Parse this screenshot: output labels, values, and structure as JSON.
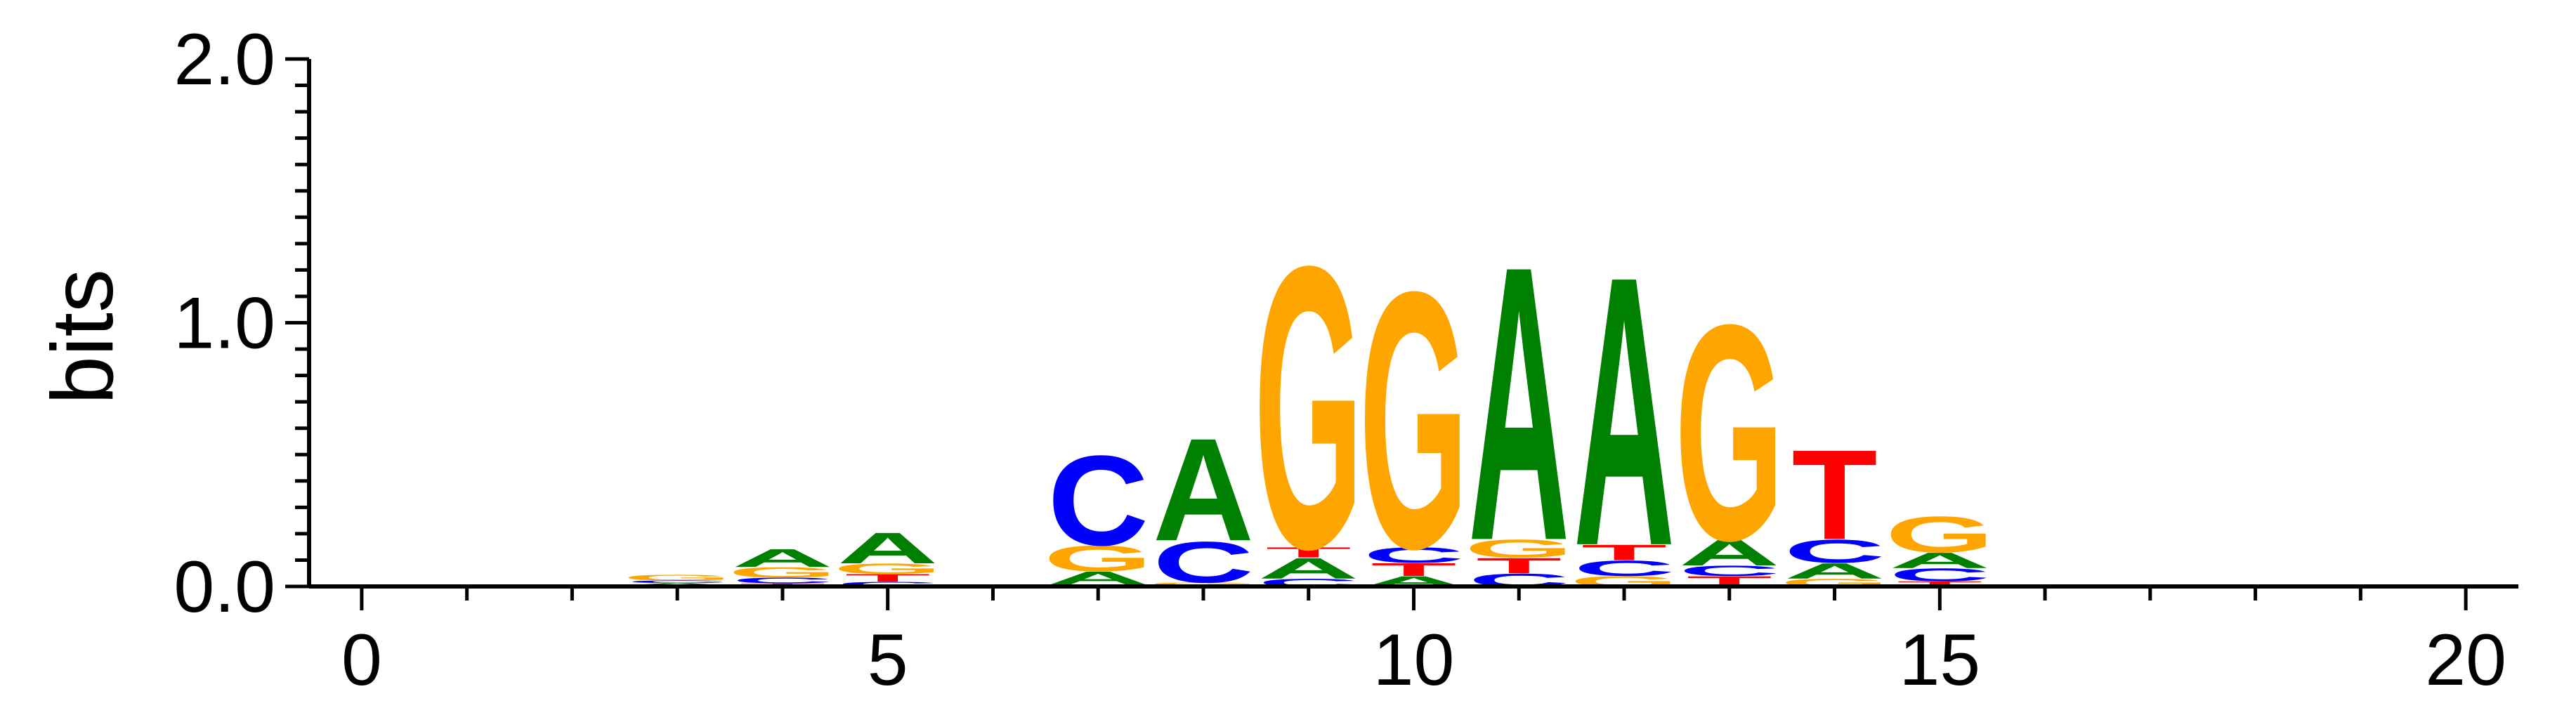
{
  "chart_data": {
    "type": "sequence-logo",
    "ylabel": "bits",
    "ylim": [
      0,
      2.0
    ],
    "xlim": [
      -0.5,
      20.5
    ],
    "xticks_major": [
      0,
      5,
      10,
      15,
      20
    ],
    "yticks_major": [
      0.0,
      1.0,
      2.0
    ],
    "ytick_labels": [
      "0.0",
      "1.0",
      "2.0"
    ],
    "xtick_labels": [
      "0",
      "5",
      "10",
      "15",
      "20"
    ],
    "colors": {
      "A": "#008000",
      "C": "#0000ff",
      "G": "#ffa500",
      "T": "#ff0000"
    },
    "positions": [
      {
        "pos": 3,
        "letters": [
          {
            "b": "T",
            "h": 0.005
          },
          {
            "b": "A",
            "h": 0.008
          },
          {
            "b": "C",
            "h": 0.01
          },
          {
            "b": "G",
            "h": 0.022
          }
        ]
      },
      {
        "pos": 4,
        "letters": [
          {
            "b": "T",
            "h": 0.012
          },
          {
            "b": "C",
            "h": 0.022
          },
          {
            "b": "G",
            "h": 0.04
          },
          {
            "b": "A",
            "h": 0.07
          }
        ]
      },
      {
        "pos": 5,
        "letters": [
          {
            "b": "C",
            "h": 0.018
          },
          {
            "b": "T",
            "h": 0.03
          },
          {
            "b": "G",
            "h": 0.04
          },
          {
            "b": "A",
            "h": 0.12
          }
        ]
      },
      {
        "pos": 7,
        "letters": [
          {
            "b": "T",
            "h": 0.008
          },
          {
            "b": "A",
            "h": 0.05
          },
          {
            "b": "G",
            "h": 0.1
          },
          {
            "b": "C",
            "h": 0.35
          }
        ]
      },
      {
        "pos": 8,
        "letters": [
          {
            "b": "T",
            "h": 0.005
          },
          {
            "b": "G",
            "h": 0.01
          },
          {
            "b": "C",
            "h": 0.16
          },
          {
            "b": "A",
            "h": 0.4
          }
        ]
      },
      {
        "pos": 9,
        "letters": [
          {
            "b": "C",
            "h": 0.03
          },
          {
            "b": "A",
            "h": 0.08
          },
          {
            "b": "T",
            "h": 0.04
          },
          {
            "b": "G",
            "h": 1.1
          }
        ]
      },
      {
        "pos": 10,
        "letters": [
          {
            "b": "A",
            "h": 0.04
          },
          {
            "b": "T",
            "h": 0.05
          },
          {
            "b": "C",
            "h": 0.06
          },
          {
            "b": "G",
            "h": 1.0
          }
        ]
      },
      {
        "pos": 11,
        "letters": [
          {
            "b": "C",
            "h": 0.05
          },
          {
            "b": "T",
            "h": 0.06
          },
          {
            "b": "G",
            "h": 0.07
          },
          {
            "b": "A",
            "h": 1.07
          }
        ]
      },
      {
        "pos": 12,
        "letters": [
          {
            "b": "G",
            "h": 0.04
          },
          {
            "b": "C",
            "h": 0.06
          },
          {
            "b": "T",
            "h": 0.06
          },
          {
            "b": "A",
            "h": 1.05
          }
        ]
      },
      {
        "pos": 13,
        "letters": [
          {
            "b": "T",
            "h": 0.04
          },
          {
            "b": "C",
            "h": 0.04
          },
          {
            "b": "A",
            "h": 0.1
          },
          {
            "b": "G",
            "h": 0.84
          }
        ]
      },
      {
        "pos": 14,
        "letters": [
          {
            "b": "G",
            "h": 0.03
          },
          {
            "b": "A",
            "h": 0.06
          },
          {
            "b": "C",
            "h": 0.09
          },
          {
            "b": "T",
            "h": 0.35
          }
        ]
      },
      {
        "pos": 15,
        "letters": [
          {
            "b": "T",
            "h": 0.02
          },
          {
            "b": "C",
            "h": 0.05
          },
          {
            "b": "A",
            "h": 0.06
          },
          {
            "b": "G",
            "h": 0.14
          }
        ]
      }
    ]
  }
}
